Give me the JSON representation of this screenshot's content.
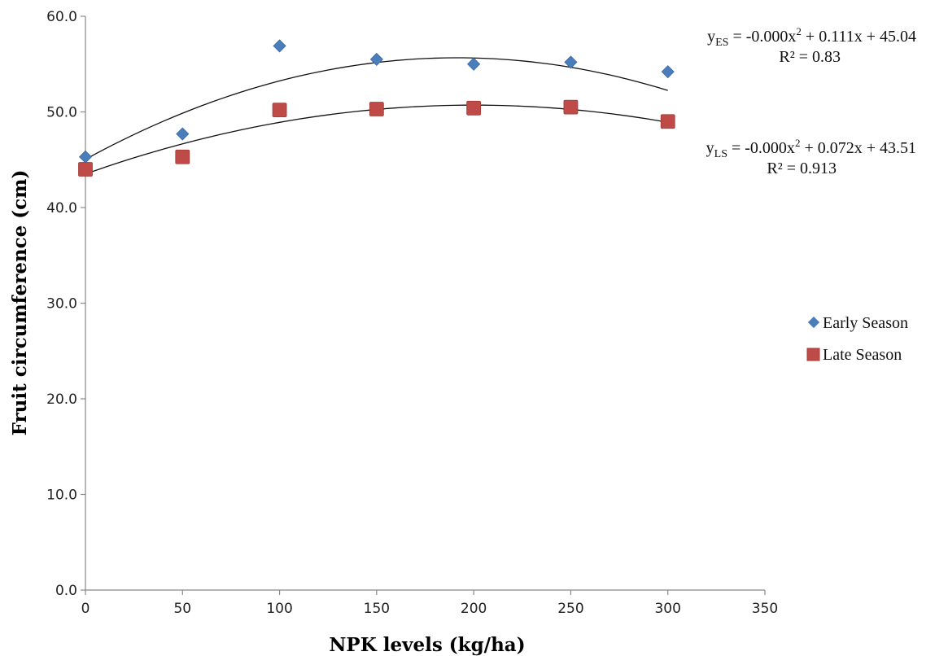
{
  "chart_data": {
    "type": "scatter",
    "xlabel": "NPK levels (kg/ha)",
    "ylabel": "Fruit circumference (cm)",
    "xlim": [
      0,
      350
    ],
    "ylim": [
      0,
      60
    ],
    "x_ticks": [
      "0",
      "50",
      "100",
      "150",
      "200",
      "250",
      "300",
      "350"
    ],
    "y_ticks": [
      "0.0",
      "10.0",
      "20.0",
      "30.0",
      "40.0",
      "50.0",
      "60.0"
    ],
    "grid": false,
    "legend_position": "right",
    "series": [
      {
        "name": "Early Season",
        "marker": "diamond",
        "color": "#4a7ebb",
        "x": [
          0,
          50,
          100,
          150,
          200,
          250,
          300
        ],
        "y": [
          45.3,
          47.7,
          56.9,
          55.5,
          55.0,
          55.2,
          54.2
        ],
        "trendline": {
          "type": "polynomial-2",
          "coefficients": [
            -0.00029,
            0.111,
            45.04
          ]
        }
      },
      {
        "name": "Late Season",
        "marker": "square",
        "color": "#be4b48",
        "x": [
          0,
          50,
          100,
          150,
          200,
          250,
          300
        ],
        "y": [
          44.0,
          45.3,
          50.2,
          50.3,
          50.4,
          50.5,
          49.0
        ],
        "trendline": {
          "type": "polynomial-2",
          "coefficients": [
            -0.00018,
            0.072,
            43.51
          ]
        }
      }
    ],
    "annotations": [
      {
        "id": "es",
        "var": "y",
        "sub": "ES",
        "rhs": " = -0.000x",
        "sup": "2",
        "tail": " + 0.111x + 45.04",
        "r2": "R² = 0.83"
      },
      {
        "id": "ls",
        "var": "y",
        "sub": "LS",
        "rhs": " = -0.000x",
        "sup": "2",
        "tail": " + 0.072x + 43.51",
        "r2": "R² = 0.913"
      }
    ]
  }
}
